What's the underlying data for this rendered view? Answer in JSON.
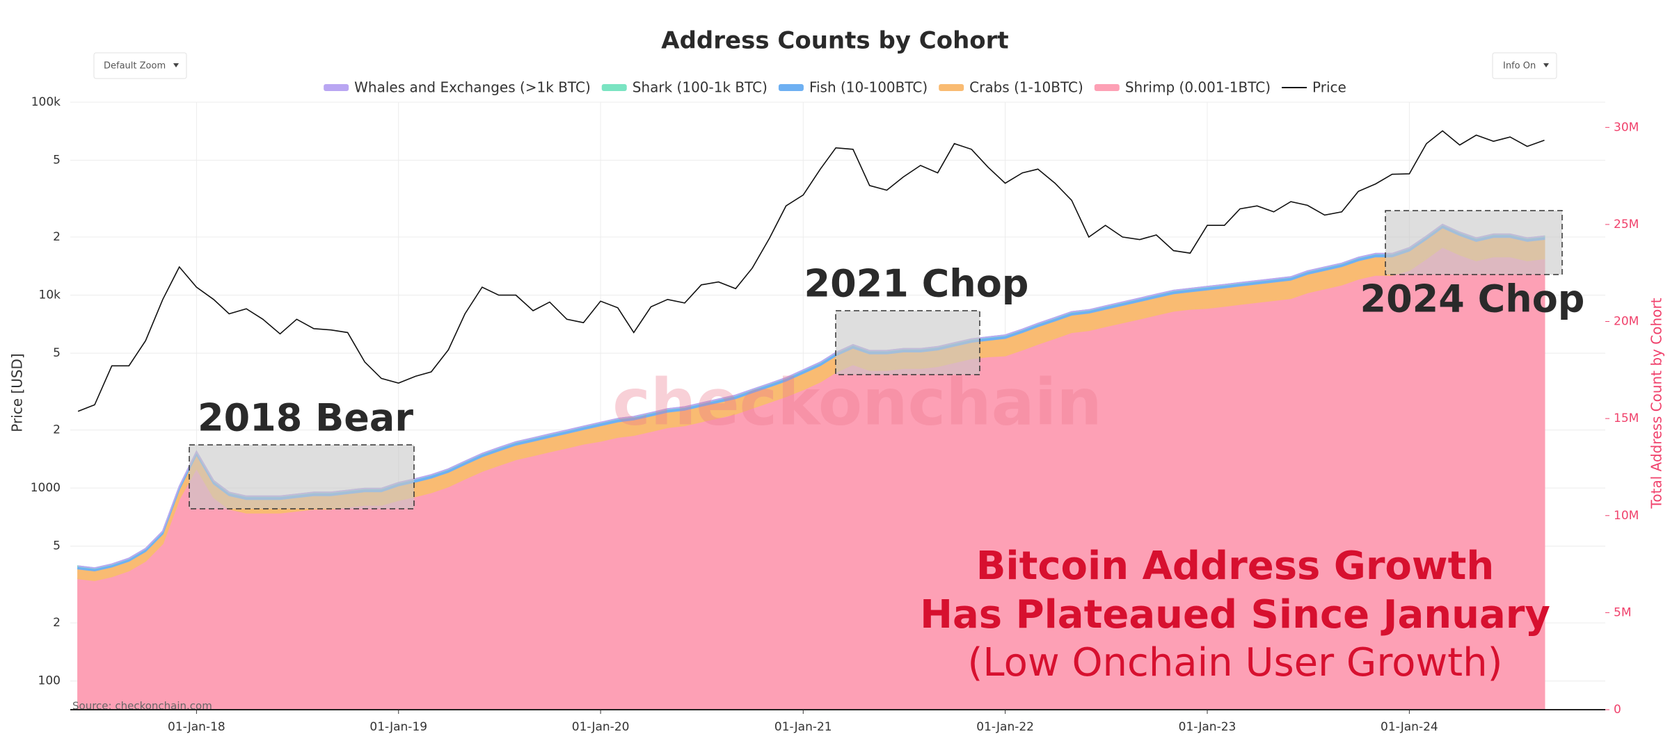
{
  "chart_data": {
    "type": "area",
    "title": "Address Counts by Cohort",
    "controls": [
      "Default Zoom",
      "Info On"
    ],
    "annotations": [
      "2018 Bear",
      "2021 Chop",
      "2024 Chop"
    ],
    "headline": [
      "Bitcoin Address Growth",
      "Has Plateaued Since January"
    ],
    "subheadline": "(Low Onchain User Growth)",
    "watermark": "checkonchain",
    "source": "Source: checkonchain.com",
    "y_label": "Price [USD]",
    "y2_label": "Total Address Count by Cohort",
    "grid": true,
    "log_y": true,
    "legend": "top",
    "xlim": [
      "2017-05-18",
      "2024-12-20"
    ],
    "xticks": [
      {
        "value": "2018-01-01",
        "label": "01-Jan-18"
      },
      {
        "value": "2019-01-01",
        "label": "01-Jan-19"
      },
      {
        "value": "2020-01-01",
        "label": "01-Jan-20"
      },
      {
        "value": "2021-01-01",
        "label": "01-Jan-21"
      },
      {
        "value": "2022-01-01",
        "label": "01-Jan-22"
      },
      {
        "value": "2023-01-01",
        "label": "01-Jan-23"
      },
      {
        "value": "2024-01-01",
        "label": "01-Jan-24"
      }
    ],
    "ylim": [
      71,
      100000
    ],
    "yticks": [
      100,
      {
        "value": 200,
        "label": "2"
      },
      {
        "value": 500,
        "label": "5"
      },
      1000,
      {
        "value": 2000,
        "label": "2"
      },
      {
        "value": 5000,
        "label": "5"
      },
      {
        "value": 10000,
        "label": "10k"
      },
      {
        "value": 20000,
        "label": "2"
      },
      {
        "value": 50000,
        "label": "5"
      },
      {
        "value": 100000,
        "label": "100k"
      }
    ],
    "y2lim": [
      0,
      31300000
    ],
    "y2ticks": [
      0,
      {
        "value": 5000000,
        "label": "5M"
      },
      {
        "value": 10000000,
        "label": "10M"
      },
      {
        "value": 15000000,
        "label": "15M"
      },
      {
        "value": 20000000,
        "label": "20M"
      },
      {
        "value": 25000000,
        "label": "25M"
      },
      {
        "value": 30000000,
        "label": "30M"
      }
    ],
    "x": [
      "2017-06-01",
      "2017-07-01",
      "2017-08-01",
      "2017-09-01",
      "2017-10-01",
      "2017-11-01",
      "2017-12-01",
      "2018-01-01",
      "2018-02-01",
      "2018-03-01",
      "2018-04-01",
      "2018-05-01",
      "2018-06-01",
      "2018-07-01",
      "2018-08-01",
      "2018-09-01",
      "2018-10-01",
      "2018-11-01",
      "2018-12-01",
      "2019-01-01",
      "2019-02-01",
      "2019-03-01",
      "2019-04-01",
      "2019-05-01",
      "2019-06-01",
      "2019-07-01",
      "2019-08-01",
      "2019-09-01",
      "2019-10-01",
      "2019-11-01",
      "2019-12-01",
      "2020-01-01",
      "2020-02-01",
      "2020-03-01",
      "2020-04-01",
      "2020-05-01",
      "2020-06-01",
      "2020-07-01",
      "2020-08-01",
      "2020-09-01",
      "2020-10-01",
      "2020-11-01",
      "2020-12-01",
      "2021-01-01",
      "2021-02-01",
      "2021-03-01",
      "2021-04-01",
      "2021-05-01",
      "2021-06-01",
      "2021-07-01",
      "2021-08-01",
      "2021-09-01",
      "2021-10-01",
      "2021-11-01",
      "2021-12-01",
      "2022-01-01",
      "2022-02-01",
      "2022-03-01",
      "2022-04-01",
      "2022-05-01",
      "2022-06-01",
      "2022-07-01",
      "2022-08-01",
      "2022-09-01",
      "2022-10-01",
      "2022-11-01",
      "2022-12-01",
      "2023-01-01",
      "2023-02-01",
      "2023-03-01",
      "2023-04-01",
      "2023-05-01",
      "2023-06-01",
      "2023-07-01",
      "2023-08-01",
      "2023-09-01",
      "2023-10-01",
      "2023-11-01",
      "2023-12-01",
      "2024-01-01",
      "2024-02-01",
      "2024-03-01",
      "2024-04-01",
      "2024-05-01",
      "2024-06-01",
      "2024-07-01",
      "2024-08-01",
      "2024-09-01"
    ],
    "series": [
      {
        "name": "Whales and Exchanges (>1k BTC)",
        "type": "area",
        "axis": "y2",
        "color": "#b9a6f2",
        "values": [
          2000,
          2000,
          2000,
          2000,
          2000,
          2000,
          2000,
          2000,
          2000,
          2000,
          2000,
          2000,
          2000,
          2000,
          2000,
          2000,
          2000,
          2000,
          2000,
          2000,
          2000,
          2000,
          2000,
          2000,
          2000,
          2000,
          2000,
          2000,
          2000,
          2000,
          2000,
          2000,
          2000,
          2000,
          2000,
          2000,
          2000,
          2000,
          2000,
          2000,
          2000,
          2000,
          2000,
          2000,
          2000,
          2000,
          2000,
          2000,
          2000,
          2000,
          2000,
          2000,
          2000,
          2000,
          2000,
          2000,
          2000,
          2000,
          2000,
          2000,
          2000,
          2000,
          2000,
          2000,
          2000,
          2000,
          2000,
          2000,
          2000,
          2000,
          2000,
          2000,
          2000,
          2000,
          2000,
          2000,
          2000,
          2000,
          2000,
          2000,
          2000,
          2000,
          2000,
          2000,
          2000,
          2000,
          2000,
          2000
        ]
      },
      {
        "name": "Shark (100-1k BTC)",
        "type": "area",
        "axis": "y2",
        "color": "#7ae4c2",
        "values": [
          16000,
          16000,
          16000,
          16000,
          16000,
          16000,
          16000,
          16000,
          16000,
          16000,
          16000,
          16000,
          16000,
          16000,
          16000,
          16000,
          16000,
          16000,
          16000,
          16000,
          16000,
          16000,
          16000,
          16000,
          16000,
          16000,
          16000,
          16000,
          16000,
          16000,
          16000,
          16000,
          16000,
          16000,
          16000,
          16000,
          16000,
          16000,
          16000,
          16000,
          16000,
          16000,
          16000,
          16000,
          16000,
          16000,
          16000,
          16000,
          16000,
          16000,
          16000,
          16000,
          16000,
          16000,
          16000,
          16000,
          16000,
          16000,
          16000,
          16000,
          16000,
          16000,
          16000,
          16000,
          16000,
          16000,
          16000,
          16000,
          16000,
          16000,
          16000,
          16000,
          16000,
          16000,
          16000,
          16000,
          16000,
          16000,
          16000,
          16000,
          16000,
          16000,
          16000,
          16000,
          16000,
          16000,
          16000,
          16000
        ]
      },
      {
        "name": "Fish (10-100BTC)",
        "type": "area",
        "axis": "y2",
        "color": "#6eb0f2",
        "values": [
          120000,
          120000,
          120000,
          120000,
          120000,
          120000,
          120000,
          140000,
          140000,
          140000,
          140000,
          140000,
          140000,
          140000,
          140000,
          140000,
          140000,
          140000,
          140000,
          140000,
          140000,
          140000,
          140000,
          140000,
          140000,
          140000,
          140000,
          140000,
          140000,
          140000,
          140000,
          140000,
          140000,
          140000,
          140000,
          140000,
          140000,
          140000,
          140000,
          140000,
          140000,
          140000,
          140000,
          140000,
          140000,
          140000,
          140000,
          140000,
          140000,
          140000,
          140000,
          140000,
          140000,
          140000,
          140000,
          140000,
          140000,
          140000,
          140000,
          140000,
          140000,
          140000,
          140000,
          140000,
          140000,
          140000,
          140000,
          140000,
          140000,
          140000,
          140000,
          140000,
          140000,
          140000,
          140000,
          140000,
          140000,
          140000,
          140000,
          140000,
          140000,
          140000,
          140000,
          140000,
          140000,
          140000,
          140000,
          140000
        ]
      },
      {
        "name": "Crabs (1-10BTC)",
        "type": "area",
        "axis": "y2",
        "color": "#f9bb72",
        "values": [
          500000,
          500000,
          500000,
          500000,
          500000,
          500000,
          500000,
          700000,
          700000,
          700000,
          700000,
          700000,
          700000,
          700000,
          700000,
          700000,
          700000,
          700000,
          700000,
          750000,
          750000,
          750000,
          750000,
          750000,
          750000,
          750000,
          750000,
          750000,
          750000,
          750000,
          750000,
          800000,
          800000,
          800000,
          800000,
          800000,
          800000,
          800000,
          800000,
          800000,
          800000,
          800000,
          800000,
          850000,
          850000,
          850000,
          850000,
          850000,
          850000,
          850000,
          850000,
          850000,
          850000,
          850000,
          850000,
          900000,
          900000,
          900000,
          900000,
          900000,
          900000,
          900000,
          900000,
          900000,
          900000,
          900000,
          900000,
          950000,
          950000,
          950000,
          950000,
          950000,
          950000,
          950000,
          950000,
          950000,
          950000,
          950000,
          950000,
          1000000,
          1000000,
          1000000,
          1000000,
          1000000,
          1000000,
          1000000,
          1000000,
          1000000
        ]
      },
      {
        "name": "Shrimp (0.001-1BTC)",
        "type": "area",
        "axis": "y2",
        "color": "#fda0b5",
        "values": [
          6762000,
          6662000,
          6862000,
          7162000,
          7662000,
          8562000,
          10862000,
          12442000,
          10942000,
          10342000,
          10142000,
          10142000,
          10142000,
          10242000,
          10342000,
          10342000,
          10442000,
          10542000,
          10542000,
          10792000,
          10992000,
          11192000,
          11492000,
          11892000,
          12292000,
          12592000,
          12892000,
          13092000,
          13292000,
          13492000,
          13692000,
          13842000,
          14042000,
          14142000,
          14342000,
          14542000,
          14642000,
          14842000,
          15042000,
          15242000,
          15542000,
          15842000,
          16142000,
          16492000,
          16892000,
          17392000,
          17792000,
          17492000,
          17492000,
          17592000,
          17592000,
          17692000,
          17892000,
          18092000,
          18192000,
          18242000,
          18542000,
          18842000,
          19142000,
          19442000,
          19542000,
          19742000,
          19942000,
          20142000,
          20342000,
          20542000,
          20642000,
          20692000,
          20792000,
          20892000,
          20992000,
          21092000,
          21192000,
          21492000,
          21692000,
          21892000,
          22192000,
          22392000,
          22392000,
          22642000,
          23242000,
          23842000,
          23442000,
          23142000,
          23342000,
          23342000,
          23142000,
          23242000
        ]
      },
      {
        "name": "Price",
        "type": "line",
        "axis": "y",
        "color": "#111111",
        "values": [
          2500,
          2700,
          4300,
          4300,
          5800,
          9500,
          14000,
          11000,
          9500,
          8000,
          8500,
          7500,
          6300,
          7500,
          6700,
          6600,
          6400,
          4500,
          3700,
          3500,
          3800,
          4000,
          5200,
          8000,
          11000,
          10000,
          10000,
          8300,
          9200,
          7500,
          7200,
          9300,
          8600,
          6400,
          8700,
          9500,
          9100,
          11300,
          11700,
          10800,
          13800,
          19700,
          29000,
          33000,
          45000,
          58000,
          57000,
          37000,
          35000,
          41000,
          47000,
          43000,
          61000,
          57000,
          46000,
          38000,
          43000,
          45000,
          38000,
          31000,
          20000,
          23000,
          20000,
          19400,
          20500,
          17000,
          16500,
          23000,
          23000,
          28000,
          29000,
          27000,
          30500,
          29200,
          26000,
          27000,
          34500,
          37700,
          42300,
          42500,
          61000,
          71000,
          60000,
          67500,
          62700,
          66000,
          59000,
          63500
        ]
      }
    ]
  }
}
